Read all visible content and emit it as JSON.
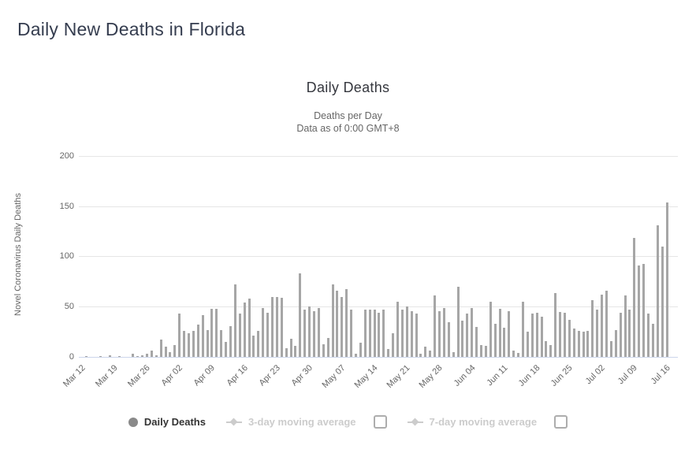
{
  "page": {
    "title": "Daily New Deaths in Florida"
  },
  "chart": {
    "title": "Daily Deaths",
    "subtitle_line1": "Deaths per Day",
    "subtitle_line2": "Data as of 0:00 GMT+8",
    "y_axis_title": "Novel Coronavirus Daily Deaths"
  },
  "legend": {
    "daily": {
      "label": "Daily Deaths",
      "active": true
    },
    "ma3": {
      "label": "3-day moving average",
      "active": false
    },
    "ma7": {
      "label": "7-day moving average",
      "active": false
    }
  },
  "colors": {
    "bar": "#a6a6a6",
    "gridline": "#e6e6e6",
    "axis_line": "#ccd6eb",
    "axis_text": "#666666",
    "title_text": "#353d4f",
    "legend_active": "#333333",
    "legend_disabled": "#cccccc"
  },
  "chart_data": {
    "type": "bar",
    "title": "Daily Deaths",
    "subtitle": "Deaths per Day — Data as of 0:00 GMT+8",
    "xlabel": "",
    "ylabel": "Novel Coronavirus Daily Deaths",
    "ylim": [
      0,
      200
    ],
    "y_ticks": [
      0,
      50,
      100,
      150,
      200
    ],
    "grid": true,
    "legend_position": "bottom",
    "series_name": "Daily Deaths",
    "x_tick_labels": [
      "Mar 12",
      "Mar 19",
      "Mar 26",
      "Apr 02",
      "Apr 09",
      "Apr 16",
      "Apr 23",
      "Apr 30",
      "May 07",
      "May 14",
      "May 21",
      "May 28",
      "Jun 04",
      "Jun 11",
      "Jun 18",
      "Jun 25",
      "Jul 02",
      "Jul 09",
      "Jul 16"
    ],
    "x_tick_interval_days": 7,
    "dates": [
      "Mar 12",
      "Mar 13",
      "Mar 14",
      "Mar 15",
      "Mar 16",
      "Mar 17",
      "Mar 18",
      "Mar 19",
      "Mar 20",
      "Mar 21",
      "Mar 22",
      "Mar 23",
      "Mar 24",
      "Mar 25",
      "Mar 26",
      "Mar 27",
      "Mar 28",
      "Mar 29",
      "Mar 30",
      "Mar 31",
      "Apr 01",
      "Apr 02",
      "Apr 03",
      "Apr 04",
      "Apr 05",
      "Apr 06",
      "Apr 07",
      "Apr 08",
      "Apr 09",
      "Apr 10",
      "Apr 11",
      "Apr 12",
      "Apr 13",
      "Apr 14",
      "Apr 15",
      "Apr 16",
      "Apr 17",
      "Apr 18",
      "Apr 19",
      "Apr 20",
      "Apr 21",
      "Apr 22",
      "Apr 23",
      "Apr 24",
      "Apr 25",
      "Apr 26",
      "Apr 27",
      "Apr 28",
      "Apr 29",
      "Apr 30",
      "May 01",
      "May 02",
      "May 03",
      "May 04",
      "May 05",
      "May 06",
      "May 07",
      "May 08",
      "May 09",
      "May 10",
      "May 11",
      "May 12",
      "May 13",
      "May 14",
      "May 15",
      "May 16",
      "May 17",
      "May 18",
      "May 19",
      "May 20",
      "May 21",
      "May 22",
      "May 23",
      "May 24",
      "May 25",
      "May 26",
      "May 27",
      "May 28",
      "May 29",
      "May 30",
      "May 31",
      "Jun 01",
      "Jun 02",
      "Jun 03",
      "Jun 04",
      "Jun 05",
      "Jun 06",
      "Jun 07",
      "Jun 08",
      "Jun 09",
      "Jun 10",
      "Jun 11",
      "Jun 12",
      "Jun 13",
      "Jun 14",
      "Jun 15",
      "Jun 16",
      "Jun 17",
      "Jun 18",
      "Jun 19",
      "Jun 20",
      "Jun 21",
      "Jun 22",
      "Jun 23",
      "Jun 24",
      "Jun 25",
      "Jun 26",
      "Jun 27",
      "Jun 28",
      "Jun 29",
      "Jun 30",
      "Jul 01",
      "Jul 02",
      "Jul 03",
      "Jul 04",
      "Jul 05",
      "Jul 06",
      "Jul 07",
      "Jul 08",
      "Jul 09",
      "Jul 10",
      "Jul 11",
      "Jul 12",
      "Jul 13",
      "Jul 14",
      "Jul 15",
      "Jul 16"
    ],
    "values": [
      0,
      1,
      0,
      0,
      1,
      0,
      2,
      0,
      1,
      0,
      0,
      3,
      1,
      2,
      3,
      6,
      2,
      17,
      10,
      5,
      12,
      43,
      26,
      24,
      26,
      32,
      42,
      27,
      48,
      48,
      27,
      15,
      31,
      72,
      43,
      54,
      58,
      21,
      26,
      49,
      44,
      60,
      60,
      59,
      9,
      18,
      11,
      83,
      47,
      50,
      46,
      49,
      13,
      19,
      72,
      66,
      60,
      68,
      47,
      3,
      14,
      47,
      47,
      47,
      44,
      47,
      8,
      24,
      55,
      47,
      50,
      46,
      43,
      3,
      10,
      6,
      61,
      46,
      49,
      35,
      5,
      70,
      36,
      43,
      49,
      30,
      12,
      11,
      55,
      33,
      48,
      29,
      46,
      6,
      4,
      55,
      25,
      43,
      44,
      40,
      16,
      12,
      64,
      45,
      44,
      37,
      28,
      26,
      25,
      26,
      57,
      47,
      62,
      66,
      16,
      27,
      44,
      61,
      47,
      119,
      91,
      93,
      43,
      33,
      131,
      110,
      154
    ]
  }
}
